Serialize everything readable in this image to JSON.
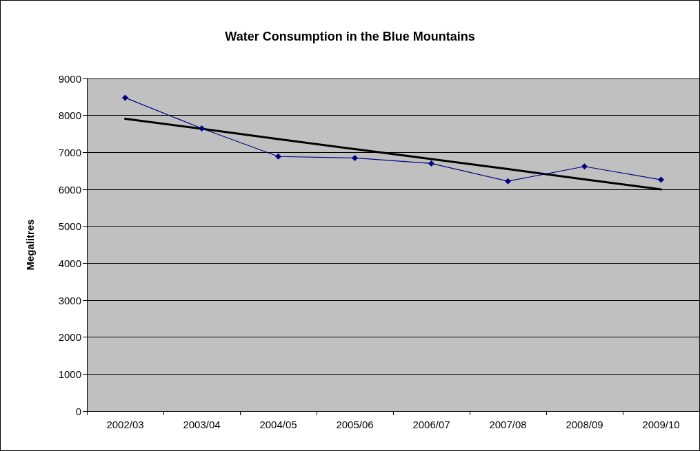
{
  "chart_data": {
    "type": "line",
    "title": "Water Consumption in the Blue Mountains",
    "ylabel": "Megalitres",
    "categories": [
      "2002/03",
      "2003/04",
      "2004/05",
      "2005/06",
      "2006/07",
      "2007/08",
      "2008/09",
      "2009/10"
    ],
    "series": [
      {
        "color": "#000080",
        "marker": "diamond",
        "values": [
          8480,
          7650,
          6890,
          6850,
          6700,
          6220,
          6620,
          6260
        ]
      },
      {
        "color": "#000000",
        "marker": "none",
        "values": [
          7910,
          7640,
          7360,
          7090,
          6820,
          6550,
          6270,
          6000
        ]
      }
    ],
    "ylim": [
      0,
      9000
    ],
    "yticks": [
      0,
      1000,
      2000,
      3000,
      4000,
      5000,
      6000,
      7000,
      8000,
      9000
    ],
    "grid": "y"
  }
}
